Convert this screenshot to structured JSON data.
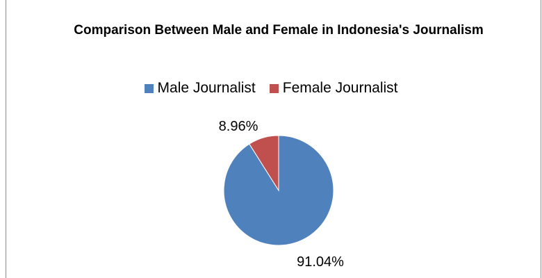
{
  "chart_data": {
    "type": "pie",
    "title": "Comparison Between Male and Female in Indonesia's Journalism",
    "legend_position": "top",
    "slices": [
      {
        "name": "Male Journalist",
        "value": 91.04,
        "label": "91.04%",
        "color": "#4f81bd"
      },
      {
        "name": "Female Journalist",
        "value": 8.96,
        "label": "8.96%",
        "color": "#c0504d"
      }
    ]
  }
}
